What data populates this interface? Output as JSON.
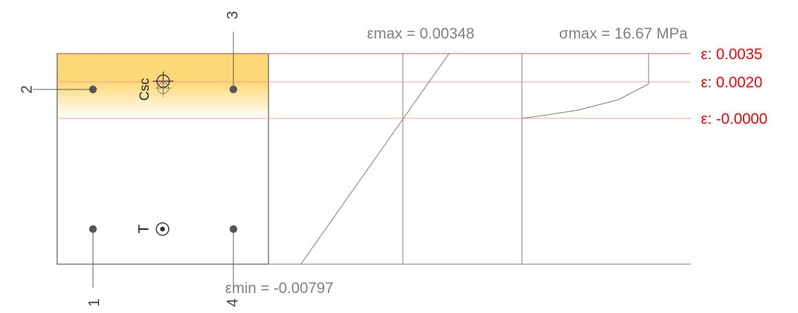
{
  "strain_diagram": {
    "eps_max_label": "εmax = 0.00348",
    "sigma_max_label": "σmax = 16.67 MPa",
    "eps_min_label": "εmin = -0.00797",
    "strain_levels": [
      {
        "label": "ε: 0.0035",
        "strain": 0.0035
      },
      {
        "label": "ε: 0.0020",
        "strain": 0.002
      },
      {
        "label": "ε: -0.0000",
        "strain": 0.0
      }
    ],
    "colors": {
      "level_label": "#ff0000",
      "compression_fill": "#fcd976",
      "dim_text": "#808080"
    }
  },
  "section": {
    "bars": [
      {
        "id": "1",
        "label": "1",
        "zone": "bottom-left"
      },
      {
        "id": "2",
        "label": "2",
        "zone": "top-left"
      },
      {
        "id": "3",
        "label": "3",
        "zone": "top-right"
      },
      {
        "id": "4",
        "label": "4",
        "zone": "bottom-right"
      }
    ],
    "compression_marker_label": "Csc",
    "tension_marker_label": "T"
  }
}
